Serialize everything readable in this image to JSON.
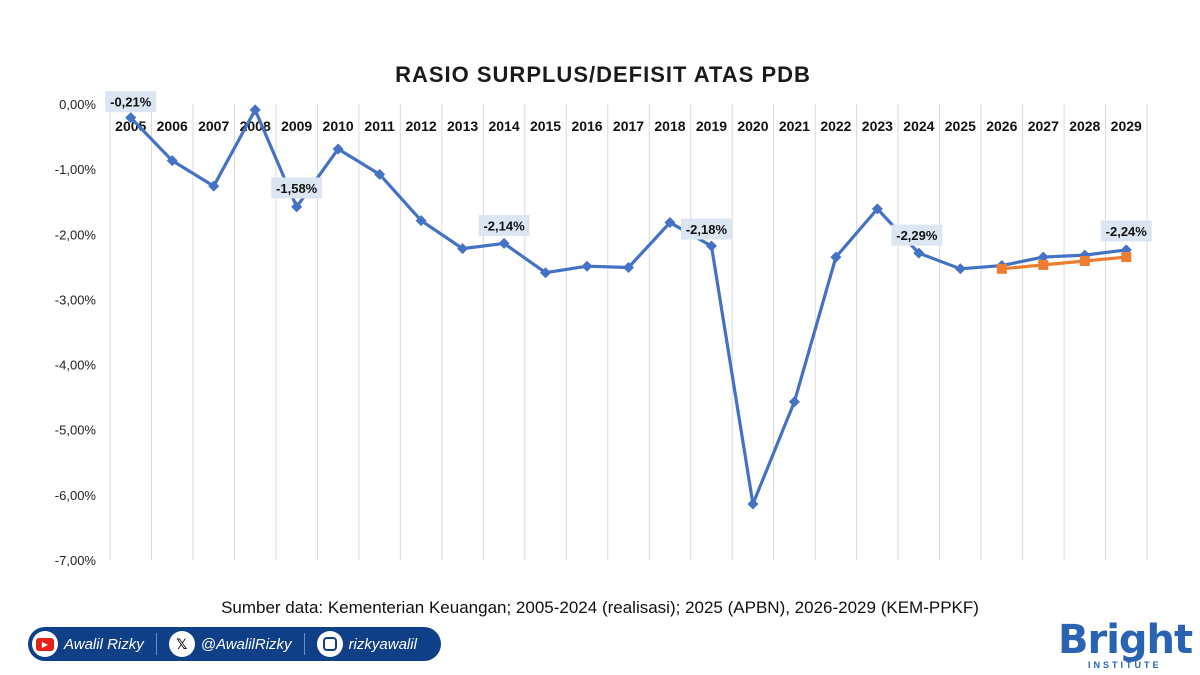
{
  "chart_data": {
    "type": "line",
    "title": "RASIO SURPLUS/DEFISIT ATAS PDB",
    "categories": [
      "2005",
      "2006",
      "2007",
      "2008",
      "2009",
      "2010",
      "2011",
      "2012",
      "2013",
      "2014",
      "2015",
      "2016",
      "2017",
      "2018",
      "2019",
      "2020",
      "2021",
      "2022",
      "2023",
      "2024",
      "2025",
      "2026",
      "2027",
      "2028",
      "2029"
    ],
    "ylim": [
      -7.0,
      0.0
    ],
    "yticks": [
      "0,00%",
      "-1,00%",
      "-2,00%",
      "-3,00%",
      "-4,00%",
      "-5,00%",
      "-6,00%",
      "-7,00%"
    ],
    "series": [
      {
        "color": "#4472c4",
        "marker": "diamond",
        "values": [
          -0.21,
          -0.87,
          -1.26,
          -0.09,
          -1.58,
          -0.69,
          -1.08,
          -1.79,
          -2.22,
          -2.14,
          -2.59,
          -2.49,
          -2.51,
          -1.82,
          -2.18,
          -6.14,
          -4.57,
          -2.35,
          -1.61,
          -2.29,
          -2.53,
          -2.48,
          -2.35,
          -2.32,
          -2.24
        ]
      },
      {
        "color": "#ed7d31",
        "marker": "square",
        "values": [
          null,
          null,
          null,
          null,
          null,
          null,
          null,
          null,
          null,
          null,
          null,
          null,
          null,
          null,
          null,
          null,
          null,
          null,
          null,
          null,
          null,
          -2.53,
          -2.47,
          -2.41,
          -2.35
        ]
      }
    ],
    "data_labels": [
      {
        "category": "2005",
        "text": "-0,21%"
      },
      {
        "category": "2009",
        "text": "-1,58%"
      },
      {
        "category": "2014",
        "text": "-2,14%"
      },
      {
        "category": "2019",
        "text": "-2,18%"
      },
      {
        "category": "2024",
        "text": "-2,29%"
      },
      {
        "category": "2029",
        "text": "-2,24%"
      }
    ],
    "grid": {
      "vertical": true,
      "horizontal": false
    },
    "legend": "none"
  },
  "source_text": "Sumber data: Kementerian Keuangan; 2005-2024 (realisasi); 2025 (APBN), 2026-2029 (KEM-PPKF)",
  "socials": {
    "youtube": "Awalil Rizky",
    "x": "@AwalilRizky",
    "instagram": "rizkyawalil"
  },
  "brand": {
    "name": "Bright",
    "sub": "INSTITUTE"
  }
}
